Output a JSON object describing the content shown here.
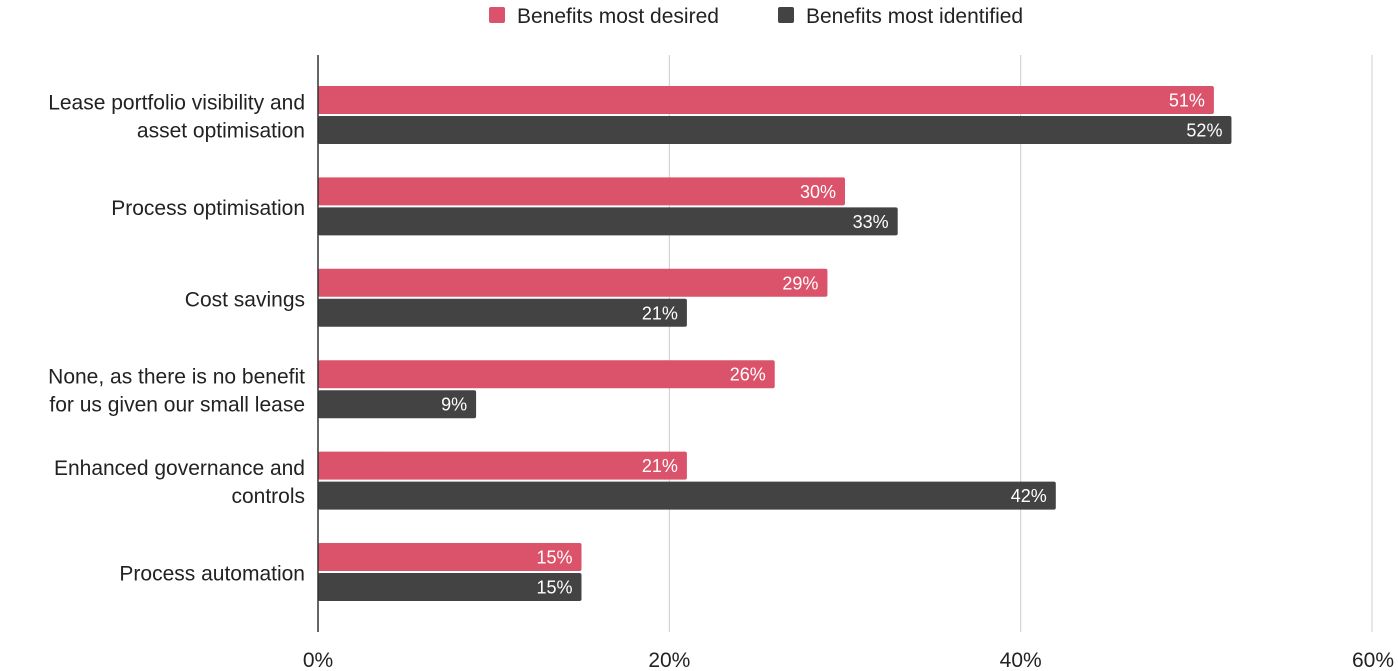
{
  "chart_data": {
    "type": "bar",
    "orientation": "horizontal",
    "categories": [
      [
        "Lease portfolio visibility and",
        "asset optimisation"
      ],
      [
        "Process optimisation"
      ],
      [
        "Cost savings"
      ],
      [
        "None, as there is no benefit",
        "for us given our small lease"
      ],
      [
        "Enhanced governance and",
        "controls"
      ],
      [
        "Process automation"
      ]
    ],
    "series": [
      {
        "name": "Benefits most desired",
        "color": "#DB536A",
        "values": [
          51,
          30,
          29,
          26,
          21,
          15
        ]
      },
      {
        "name": "Benefits most identified",
        "color": "#434343",
        "values": [
          52,
          33,
          21,
          9,
          42,
          15
        ]
      }
    ],
    "value_suffix": "%",
    "xlim": [
      0,
      60
    ],
    "x_ticks": [
      0,
      20,
      40,
      60
    ],
    "x_tick_labels": [
      "0%",
      "20%",
      "40%",
      "60%"
    ],
    "grid": true,
    "legend_position": "top-center"
  }
}
